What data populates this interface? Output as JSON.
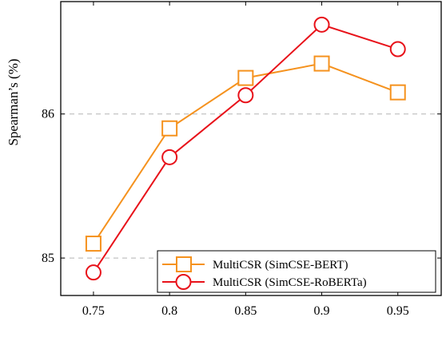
{
  "chart_data": {
    "type": "line",
    "title": "",
    "xlabel": "",
    "ylabel": "Spearman’s (%)",
    "x": [
      0.75,
      0.8,
      0.85,
      0.9,
      0.95
    ],
    "x_ticks": [
      "0.75",
      "0.8",
      "0.85",
      "0.9",
      "0.95"
    ],
    "y_ticks": [
      "85",
      "86"
    ],
    "xlim": [
      0.7285,
      0.9785
    ],
    "ylim": [
      84.74,
      86.78
    ],
    "grid": "horizontal dashed at y-ticks",
    "legend_position": "bottom-right",
    "series": [
      {
        "name": "MultiCSR (SimCSE-BERT)",
        "color": "#f5921e",
        "marker": "square",
        "values": [
          85.1,
          85.9,
          86.25,
          86.35,
          86.15
        ]
      },
      {
        "name": "MultiCSR (SimCSE-RoBERTa)",
        "color": "#e8121a",
        "marker": "circle",
        "values": [
          84.9,
          85.7,
          86.13,
          86.62,
          86.45
        ]
      }
    ]
  }
}
